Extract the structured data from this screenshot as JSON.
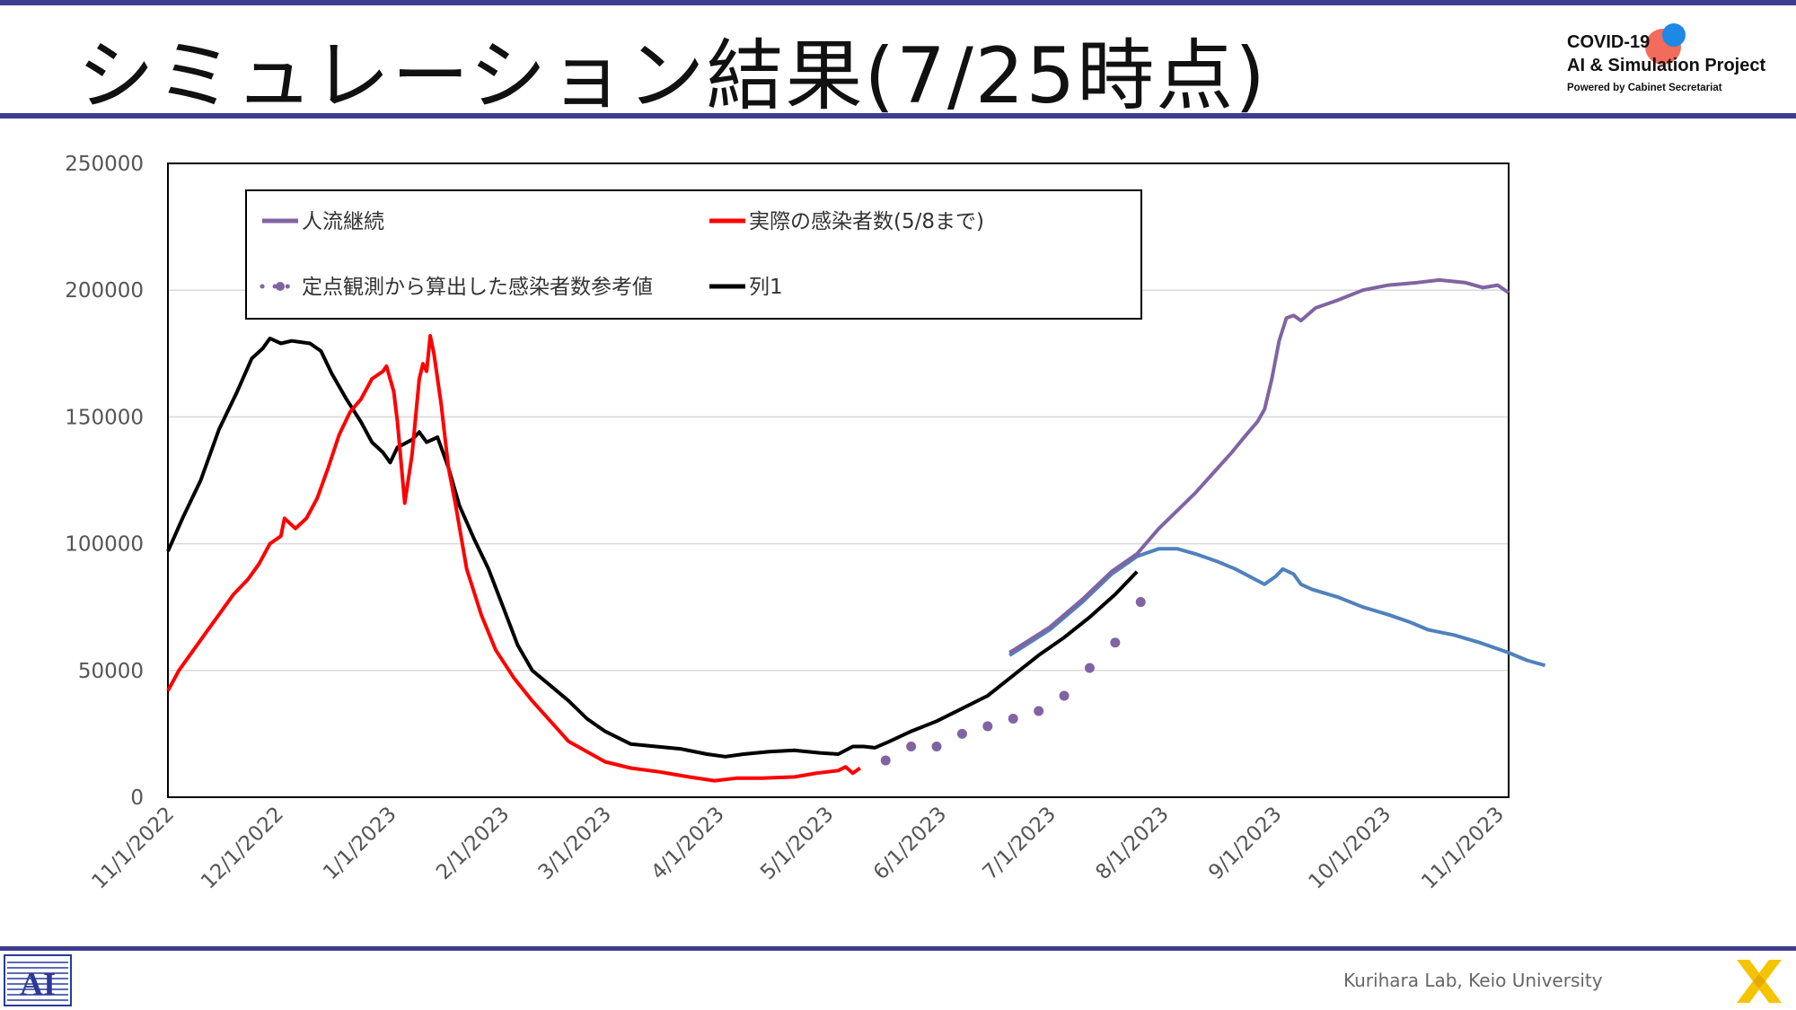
{
  "slide": {
    "title": "シミュレーション結果(7/25時点)",
    "footer": "Kurihara Lab, Keio University",
    "colors": {
      "rule": "#3d3d8f",
      "purple": "#8064a2",
      "red": "#ff0000",
      "black": "#000000",
      "blue": "#4f81bd"
    }
  },
  "logo": {
    "line1": "COVID-19",
    "line2": "AI & Simulation Project",
    "line3": "Powered by Cabinet Secretariat"
  },
  "icons": {
    "left_footer": "ai-lab-logo-icon",
    "right_footer": "x-brand-icon"
  },
  "chart_data": {
    "type": "line",
    "title": "",
    "xlabel": "",
    "ylabel": "",
    "ylim": [
      0,
      250000
    ],
    "y_ticks": [
      "0",
      "50000",
      "100000",
      "150000",
      "200000",
      "250000"
    ],
    "x_range": [
      "2022-11-01",
      "2023-11-04"
    ],
    "x_ticks": [
      {
        "date": "2022-11-01",
        "label": "11/1/2022"
      },
      {
        "date": "2022-12-01",
        "label": "12/1/2022"
      },
      {
        "date": "2023-01-01",
        "label": "1/1/2023"
      },
      {
        "date": "2023-02-01",
        "label": "2/1/2023"
      },
      {
        "date": "2023-03-01",
        "label": "3/1/2023"
      },
      {
        "date": "2023-04-01",
        "label": "4/1/2023"
      },
      {
        "date": "2023-05-01",
        "label": "5/1/2023"
      },
      {
        "date": "2023-06-01",
        "label": "6/1/2023"
      },
      {
        "date": "2023-07-01",
        "label": "7/1/2023"
      },
      {
        "date": "2023-08-01",
        "label": "8/1/2023"
      },
      {
        "date": "2023-09-01",
        "label": "9/1/2023"
      },
      {
        "date": "2023-10-01",
        "label": "10/1/2023"
      },
      {
        "date": "2023-11-01",
        "label": "11/1/2023"
      }
    ],
    "grid": "horizontal",
    "legend_position": "top",
    "series": [
      {
        "name": "人流継続",
        "color": "#8064a2",
        "style": "line",
        "points": [
          [
            "2023-06-20",
            57000
          ],
          [
            "2023-07-01",
            67000
          ],
          [
            "2023-07-10",
            78000
          ],
          [
            "2023-07-18",
            89000
          ],
          [
            "2023-07-25",
            96000
          ],
          [
            "2023-07-31",
            106000
          ],
          [
            "2023-08-05",
            113000
          ],
          [
            "2023-08-10",
            120000
          ],
          [
            "2023-08-15",
            128000
          ],
          [
            "2023-08-20",
            136000
          ],
          [
            "2023-08-24",
            143000
          ],
          [
            "2023-08-27",
            148000
          ],
          [
            "2023-08-29",
            153000
          ],
          [
            "2023-08-31",
            165000
          ],
          [
            "2023-09-02",
            180000
          ],
          [
            "2023-09-04",
            189000
          ],
          [
            "2023-09-06",
            190000
          ],
          [
            "2023-09-08",
            188000
          ],
          [
            "2023-09-12",
            193000
          ],
          [
            "2023-09-18",
            196000
          ],
          [
            "2023-09-25",
            200000
          ],
          [
            "2023-10-02",
            202000
          ],
          [
            "2023-10-10",
            203000
          ],
          [
            "2023-10-16",
            204000
          ],
          [
            "2023-10-23",
            203000
          ],
          [
            "2023-10-28",
            201000
          ],
          [
            "2023-11-01",
            202000
          ],
          [
            "2023-11-04",
            199000
          ]
        ]
      },
      {
        "name": "実際の感染者数(5/8まで)",
        "color": "#ff0000",
        "style": "line",
        "points": [
          [
            "2022-11-01",
            42000
          ],
          [
            "2022-11-04",
            50000
          ],
          [
            "2022-11-08",
            58000
          ],
          [
            "2022-11-12",
            66000
          ],
          [
            "2022-11-15",
            72000
          ],
          [
            "2022-11-19",
            80000
          ],
          [
            "2022-11-23",
            86000
          ],
          [
            "2022-11-26",
            92000
          ],
          [
            "2022-11-29",
            100000
          ],
          [
            "2022-12-02",
            103000
          ],
          [
            "2022-12-03",
            110000
          ],
          [
            "2022-12-06",
            106000
          ],
          [
            "2022-12-09",
            110000
          ],
          [
            "2022-12-12",
            118000
          ],
          [
            "2022-12-15",
            130000
          ],
          [
            "2022-12-18",
            143000
          ],
          [
            "2022-12-21",
            152000
          ],
          [
            "2022-12-24",
            157000
          ],
          [
            "2022-12-27",
            165000
          ],
          [
            "2022-12-30",
            168000
          ],
          [
            "2022-12-31",
            170000
          ],
          [
            "2023-01-02",
            160000
          ],
          [
            "2023-01-03",
            148000
          ],
          [
            "2023-01-05",
            116000
          ],
          [
            "2023-01-07",
            135000
          ],
          [
            "2023-01-09",
            165000
          ],
          [
            "2023-01-10",
            171000
          ],
          [
            "2023-01-11",
            168000
          ],
          [
            "2023-01-12",
            182000
          ],
          [
            "2023-01-13",
            175000
          ],
          [
            "2023-01-15",
            155000
          ],
          [
            "2023-01-17",
            130000
          ],
          [
            "2023-01-19",
            115000
          ],
          [
            "2023-01-22",
            90000
          ],
          [
            "2023-01-26",
            72000
          ],
          [
            "2023-01-30",
            58000
          ],
          [
            "2023-02-04",
            47000
          ],
          [
            "2023-02-09",
            38000
          ],
          [
            "2023-02-14",
            30000
          ],
          [
            "2023-02-19",
            22000
          ],
          [
            "2023-02-24",
            18000
          ],
          [
            "2023-03-01",
            14000
          ],
          [
            "2023-03-08",
            11500
          ],
          [
            "2023-03-16",
            10000
          ],
          [
            "2023-03-24",
            8000
          ],
          [
            "2023-03-31",
            6500
          ],
          [
            "2023-04-06",
            7500
          ],
          [
            "2023-04-13",
            7500
          ],
          [
            "2023-04-22",
            8000
          ],
          [
            "2023-04-28",
            9500
          ],
          [
            "2023-05-04",
            10500
          ],
          [
            "2023-05-06",
            12000
          ],
          [
            "2023-05-08",
            9500
          ],
          [
            "2023-05-10",
            11500
          ]
        ]
      },
      {
        "name": "定点観測から算出した感染者数参考値",
        "color": "#8064a2",
        "style": "dots",
        "points": [
          [
            "2023-05-17",
            14500
          ],
          [
            "2023-05-24",
            20000
          ],
          [
            "2023-05-31",
            20000
          ],
          [
            "2023-06-07",
            25000
          ],
          [
            "2023-06-14",
            28000
          ],
          [
            "2023-06-21",
            31000
          ],
          [
            "2023-06-28",
            34000
          ],
          [
            "2023-07-05",
            40000
          ],
          [
            "2023-07-12",
            51000
          ],
          [
            "2023-07-19",
            61000
          ],
          [
            "2023-07-26",
            77000
          ]
        ]
      },
      {
        "name": "列1",
        "color": "#000000",
        "style": "line",
        "points": [
          [
            "2022-11-01",
            97000
          ],
          [
            "2022-11-05",
            110000
          ],
          [
            "2022-11-10",
            125000
          ],
          [
            "2022-11-15",
            145000
          ],
          [
            "2022-11-20",
            160000
          ],
          [
            "2022-11-24",
            173000
          ],
          [
            "2022-11-27",
            177000
          ],
          [
            "2022-11-29",
            181000
          ],
          [
            "2022-12-02",
            179000
          ],
          [
            "2022-12-05",
            180000
          ],
          [
            "2022-12-10",
            179000
          ],
          [
            "2022-12-13",
            176000
          ],
          [
            "2022-12-16",
            167000
          ],
          [
            "2022-12-20",
            157000
          ],
          [
            "2022-12-24",
            148000
          ],
          [
            "2022-12-27",
            140000
          ],
          [
            "2022-12-30",
            136000
          ],
          [
            "2023-01-01",
            132000
          ],
          [
            "2023-01-03",
            138000
          ],
          [
            "2023-01-07",
            141000
          ],
          [
            "2023-01-09",
            144000
          ],
          [
            "2023-01-11",
            140000
          ],
          [
            "2023-01-14",
            142000
          ],
          [
            "2023-01-17",
            130000
          ],
          [
            "2023-01-20",
            115000
          ],
          [
            "2023-01-24",
            102000
          ],
          [
            "2023-01-28",
            90000
          ],
          [
            "2023-02-01",
            75000
          ],
          [
            "2023-02-05",
            60000
          ],
          [
            "2023-02-09",
            50000
          ],
          [
            "2023-02-14",
            44000
          ],
          [
            "2023-02-19",
            38000
          ],
          [
            "2023-02-24",
            31000
          ],
          [
            "2023-03-01",
            26000
          ],
          [
            "2023-03-08",
            21000
          ],
          [
            "2023-03-15",
            20000
          ],
          [
            "2023-03-22",
            19000
          ],
          [
            "2023-03-29",
            17000
          ],
          [
            "2023-04-03",
            16000
          ],
          [
            "2023-04-08",
            17000
          ],
          [
            "2023-04-15",
            18000
          ],
          [
            "2023-04-22",
            18500
          ],
          [
            "2023-04-29",
            17500
          ],
          [
            "2023-05-04",
            17000
          ],
          [
            "2023-05-08",
            20000
          ],
          [
            "2023-05-11",
            20000
          ],
          [
            "2023-05-14",
            19500
          ],
          [
            "2023-05-18",
            22000
          ],
          [
            "2023-05-24",
            26000
          ],
          [
            "2023-05-31",
            30000
          ],
          [
            "2023-06-07",
            35000
          ],
          [
            "2023-06-14",
            40000
          ],
          [
            "2023-06-21",
            48000
          ],
          [
            "2023-06-28",
            56000
          ],
          [
            "2023-07-05",
            63000
          ],
          [
            "2023-07-12",
            71000
          ],
          [
            "2023-07-19",
            80000
          ],
          [
            "2023-07-25",
            89000
          ]
        ]
      },
      {
        "name": "",
        "color": "#4f81bd",
        "style": "line",
        "points": [
          [
            "2023-06-20",
            56000
          ],
          [
            "2023-07-01",
            66000
          ],
          [
            "2023-07-10",
            77000
          ],
          [
            "2023-07-18",
            88000
          ],
          [
            "2023-07-25",
            95000
          ],
          [
            "2023-07-31",
            98000
          ],
          [
            "2023-08-05",
            98000
          ],
          [
            "2023-08-10",
            96000
          ],
          [
            "2023-08-16",
            93000
          ],
          [
            "2023-08-21",
            90000
          ],
          [
            "2023-08-25",
            87000
          ],
          [
            "2023-08-29",
            84000
          ],
          [
            "2023-09-01",
            87000
          ],
          [
            "2023-09-03",
            90000
          ],
          [
            "2023-09-06",
            88000
          ],
          [
            "2023-09-08",
            84000
          ],
          [
            "2023-09-11",
            82000
          ],
          [
            "2023-09-18",
            79000
          ],
          [
            "2023-09-25",
            75000
          ],
          [
            "2023-10-02",
            72000
          ],
          [
            "2023-10-08",
            69000
          ],
          [
            "2023-10-13",
            66000
          ],
          [
            "2023-10-20",
            64000
          ],
          [
            "2023-10-27",
            61000
          ],
          [
            "2023-11-04",
            57000
          ],
          [
            "2023-11-09",
            54000
          ],
          [
            "2023-11-14",
            52000
          ]
        ]
      }
    ]
  }
}
